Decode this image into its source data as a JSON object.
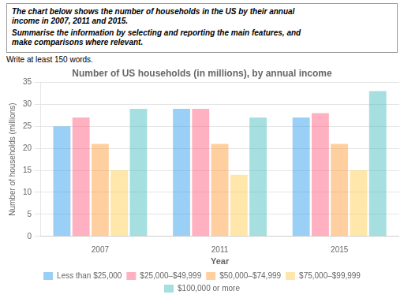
{
  "chart_data": {
    "type": "bar",
    "title": "Number of US households (in millions), by annual income",
    "xlabel": "Year",
    "ylabel": "Number of households (millions)",
    "categories": [
      "2007",
      "2011",
      "2015"
    ],
    "series": [
      {
        "name": "Less than $25,000",
        "values": [
          25,
          29,
          27
        ]
      },
      {
        "name": "$25,000–$49,999",
        "values": [
          27,
          29,
          28
        ]
      },
      {
        "name": "$50,000–$74,999",
        "values": [
          21,
          21,
          21
        ]
      },
      {
        "name": "$75,000–$99,999",
        "values": [
          15,
          14,
          15
        ]
      },
      {
        "name": "$100,000 or more",
        "values": [
          29,
          27,
          33
        ]
      }
    ],
    "ylim": [
      0,
      35
    ],
    "yticks": [
      0,
      5,
      10,
      15,
      20,
      25,
      30,
      35
    ],
    "grid": true,
    "legend": "bottom",
    "annotations": [
      "The chart below shows the number of households in the US by their annual\nincome in 2007, 2011 and 2015.",
      "Summarise the information by selecting and reporting the main features, and\nmake comparisons where relevant.",
      "Write at least 150 words."
    ]
  }
}
